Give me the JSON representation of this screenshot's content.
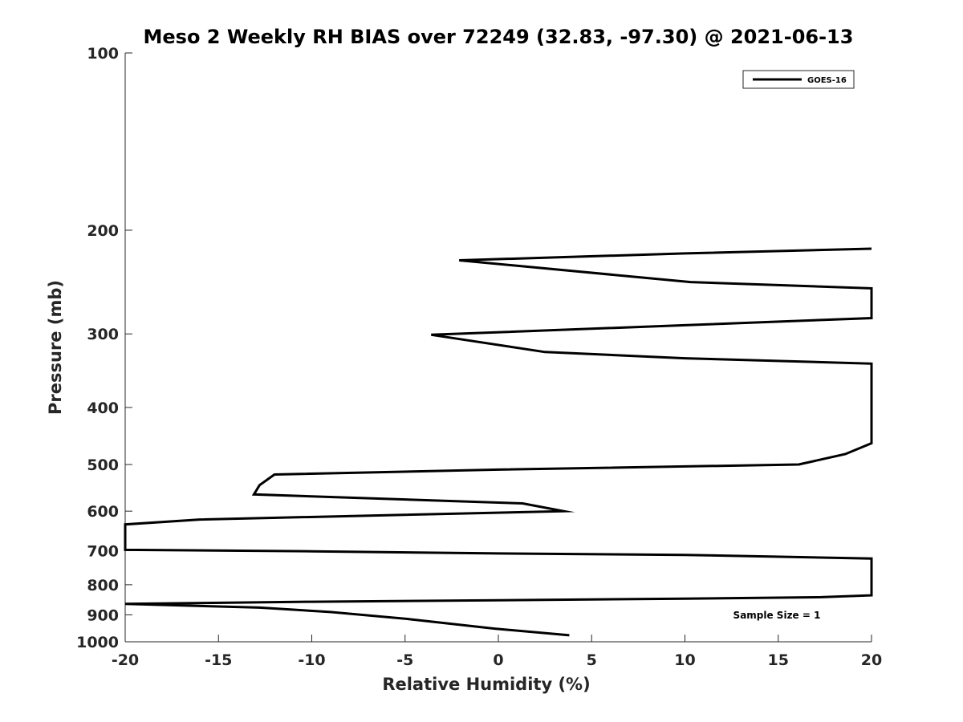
{
  "chart_data": {
    "type": "line",
    "title": "Meso 2 Weekly RH BIAS over 72249 (32.83, -97.30) @ 2021-06-13",
    "xlabel": "Relative Humidity (%)",
    "ylabel": "Pressure (mb)",
    "xlim": [
      -20,
      20
    ],
    "ylim": [
      100,
      1000
    ],
    "y_scale": "log",
    "y_reversed": true,
    "grid": false,
    "legend_position": "top-right",
    "x_ticks": [
      "-20",
      "-15",
      "-10",
      "-5",
      "0",
      "5",
      "10",
      "15",
      "20"
    ],
    "y_ticks": [
      "100",
      "200",
      "300",
      "400",
      "500",
      "600",
      "700",
      "800",
      "900",
      "1000"
    ],
    "series": [
      {
        "name": "GOES-16",
        "color": "#000000",
        "points": [
          [
            3.8,
            975
          ],
          [
            -0.2,
            950
          ],
          [
            -4.8,
            915
          ],
          [
            -9.0,
            890
          ],
          [
            -12.8,
            875
          ],
          [
            -20,
            862
          ],
          [
            -10.0,
            855
          ],
          [
            0,
            850
          ],
          [
            10,
            845
          ],
          [
            17.3,
            840
          ],
          [
            20,
            834
          ],
          [
            20,
            722
          ],
          [
            10,
            712
          ],
          [
            0,
            708
          ],
          [
            -10,
            702
          ],
          [
            -20,
            698
          ],
          [
            -20,
            632
          ],
          [
            -16.0,
            620
          ],
          [
            3.5,
            600
          ],
          [
            1.3,
            582
          ],
          [
            -13.1,
            562
          ],
          [
            -12.8,
            542
          ],
          [
            -12.0,
            520
          ],
          [
            0,
            510
          ],
          [
            16.1,
            500
          ],
          [
            18.6,
            480
          ],
          [
            20,
            460
          ],
          [
            20,
            337
          ],
          [
            10,
            330
          ],
          [
            2.5,
            322
          ],
          [
            -3.6,
            301
          ],
          [
            10,
            290
          ],
          [
            20,
            282
          ],
          [
            20,
            251
          ],
          [
            10.3,
            245
          ],
          [
            -2.1,
            225
          ],
          [
            10,
            219
          ],
          [
            20,
            215
          ]
        ]
      }
    ],
    "annotations": [
      {
        "text": "Sample Size = 1"
      }
    ]
  }
}
